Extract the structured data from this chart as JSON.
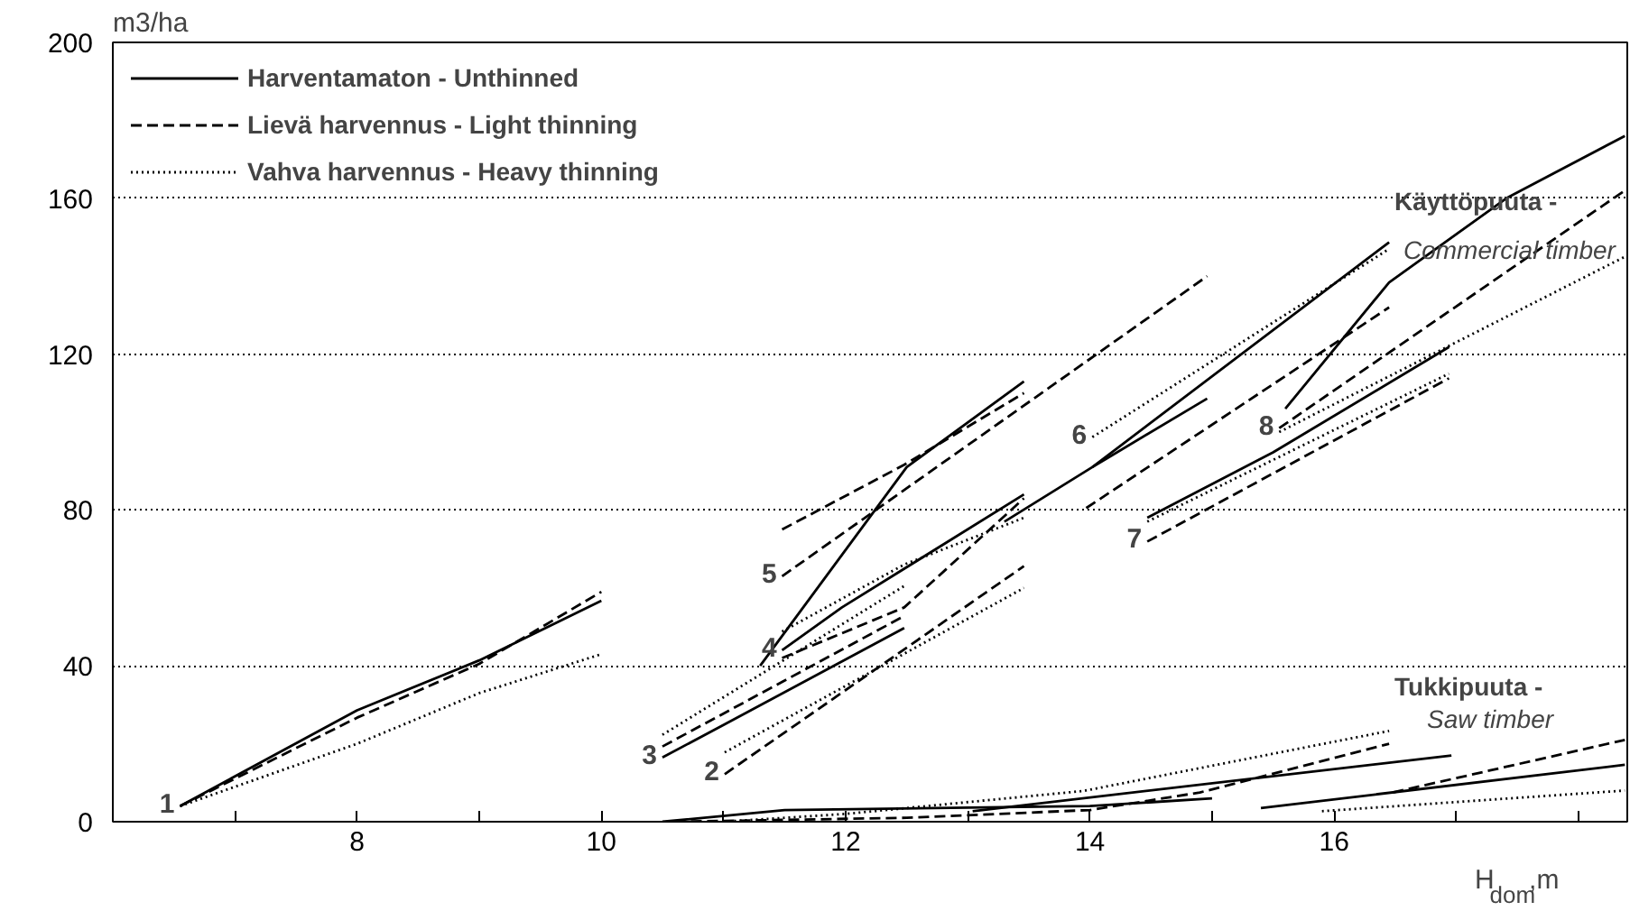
{
  "chart_data": {
    "type": "line",
    "ylabel": "m3/ha",
    "xlabel": "H$_{dom}$,m",
    "xlim": [
      6,
      18.4
    ],
    "ylim": [
      0,
      200
    ],
    "xticks": [
      {
        "value": 7,
        "label": null
      },
      8,
      {
        "value": 9,
        "label": null
      },
      10,
      {
        "value": 11,
        "label": null
      },
      12,
      {
        "value": 13,
        "label": null
      },
      14,
      {
        "value": 15,
        "label": null
      },
      16,
      {
        "value": 17,
        "label": null
      },
      {
        "value": 18,
        "label": null
      }
    ],
    "yticks": [
      0,
      40,
      80,
      120,
      160,
      200
    ],
    "grid": "y",
    "legend": "top left",
    "series": [
      {
        "name": "Harventamaton - Unthinned",
        "color": "#000000",
        "line_style": "solid",
        "x": [
          6.55,
          8,
          9,
          10
        ],
        "values": [
          4,
          28.6,
          41.4,
          56.7
        ]
      },
      {
        "color": "#000000",
        "line_style": "solid",
        "x": [
          10.5,
          11.01,
          12.48
        ],
        "values": [
          16.5,
          25,
          49.7
        ]
      },
      {
        "color": "#000000",
        "line_style": "solid",
        "x": [
          11.3,
          12.5,
          13.46
        ],
        "values": [
          40,
          91,
          113
        ]
      },
      {
        "color": "#000000",
        "line_style": "solid",
        "x": [
          11.48,
          11.97,
          13.46
        ],
        "values": [
          44,
          55,
          84
        ]
      },
      {
        "color": "#000000",
        "line_style": "solid",
        "x": [
          13.3,
          14.02,
          16.45
        ],
        "values": [
          77,
          91,
          148.7
        ]
      },
      {
        "color": "#000000",
        "line_style": "solid",
        "x": [
          14.02,
          14.96
        ],
        "values": [
          91,
          108.6
        ]
      },
      {
        "color": "#000000",
        "line_style": "solid",
        "x": [
          14.47,
          15.5,
          16.94
        ],
        "values": [
          78,
          94.8,
          121.8
        ]
      },
      {
        "color": "#000000",
        "line_style": "solid",
        "x": [
          15.6,
          16.45,
          17.41,
          18.38
        ],
        "values": [
          106,
          138.4,
          160,
          176
        ]
      },
      {
        "color": "#000000",
        "line_style": "solid",
        "x": [
          10.5,
          11.5,
          14,
          15
        ],
        "values": [
          0,
          3,
          4,
          6
        ]
      },
      {
        "color": "#000000",
        "line_style": "solid",
        "x": [
          13.04,
          16.96
        ],
        "values": [
          2.7,
          17
        ]
      },
      {
        "color": "#000000",
        "line_style": "solid",
        "x": [
          15.4,
          18.38
        ],
        "values": [
          3.5,
          14.6
        ]
      },
      {
        "name": "Lievä harvennus - Light thinning",
        "color": "#000000",
        "line_style": "dashed",
        "x": [
          6.55,
          8,
          9,
          10
        ],
        "values": [
          4,
          26.7,
          40.5,
          59
        ]
      },
      {
        "color": "#000000",
        "line_style": "dashed",
        "x": [
          11.01,
          13.46
        ],
        "values": [
          12.2,
          65.6
        ]
      },
      {
        "color": "#000000",
        "line_style": "dashed",
        "x": [
          10.5,
          12.48
        ],
        "values": [
          19.3,
          52.8
        ]
      },
      {
        "color": "#000000",
        "line_style": "dashed",
        "x": [
          11.48,
          12.48,
          13.46
        ],
        "values": [
          42,
          55,
          83
        ]
      },
      {
        "color": "#000000",
        "line_style": "dashed",
        "x": [
          11.48,
          12.48,
          13.46
        ],
        "values": [
          75,
          91.6,
          110
        ]
      },
      {
        "color": "#000000",
        "line_style": "dashed",
        "x": [
          11.48,
          14.96
        ],
        "values": [
          63,
          140
        ]
      },
      {
        "color": "#000000",
        "line_style": "dashed",
        "x": [
          13.97,
          16.45
        ],
        "values": [
          80.5,
          132
        ]
      },
      {
        "color": "#000000",
        "line_style": "dashed",
        "x": [
          14.47,
          16.94
        ],
        "values": [
          71.9,
          113.8
        ]
      },
      {
        "color": "#000000",
        "line_style": "dashed",
        "x": [
          15.55,
          18.38
        ],
        "values": [
          101,
          162
        ]
      },
      {
        "color": "#000000",
        "line_style": "dashed",
        "x": [
          10.6,
          12.5,
          14,
          14.9,
          16.45
        ],
        "values": [
          0,
          1,
          3,
          7.5,
          20
        ]
      },
      {
        "color": "#000000",
        "line_style": "dashed",
        "x": [
          16.48,
          18.38
        ],
        "values": [
          7.5,
          21
        ]
      },
      {
        "name": "Vahva harvennus - Heavy thinning",
        "color": "#000000",
        "line_style": "dotted",
        "x": [
          6.55,
          8,
          9,
          10
        ],
        "values": [
          4,
          20,
          33,
          43
        ]
      },
      {
        "color": "#000000",
        "line_style": "dotted",
        "x": [
          11.01,
          13.46
        ],
        "values": [
          17.8,
          60
        ]
      },
      {
        "color": "#000000",
        "line_style": "dotted",
        "x": [
          10.5,
          12.48
        ],
        "values": [
          22.3,
          60.5
        ]
      },
      {
        "color": "#000000",
        "line_style": "dotted",
        "x": [
          11.48,
          12.48,
          13.46
        ],
        "values": [
          48.8,
          66,
          78
        ]
      },
      {
        "color": "#000000",
        "line_style": "dotted",
        "x": [
          14.02,
          16.45
        ],
        "values": [
          98.7,
          147
        ]
      },
      {
        "color": "#000000",
        "line_style": "dotted",
        "x": [
          14.47,
          16.94
        ],
        "values": [
          77,
          115
        ]
      },
      {
        "color": "#000000",
        "line_style": "dotted",
        "x": [
          15.55,
          18.38
        ],
        "values": [
          100,
          145
        ]
      },
      {
        "color": "#000000",
        "line_style": "dotted",
        "x": [
          11,
          12,
          13.95,
          16.45
        ],
        "values": [
          0,
          2,
          7.9,
          23.3
        ]
      },
      {
        "color": "#000000",
        "line_style": "dotted",
        "x": [
          15.9,
          18.38
        ],
        "values": [
          2.7,
          8
        ]
      }
    ],
    "annotations": [
      {
        "text": "1",
        "x": 6.55,
        "y": 4
      },
      {
        "text": "2",
        "x": 11.01,
        "y": 12.2
      },
      {
        "text": "3",
        "x": 10.5,
        "y": 16.5
      },
      {
        "text": "4",
        "x": 11.48,
        "y": 44
      },
      {
        "text": "5",
        "x": 11.48,
        "y": 63
      },
      {
        "text": "6",
        "x": 14.02,
        "y": 98.7
      },
      {
        "text": "7",
        "x": 14.47,
        "y": 71.9
      },
      {
        "text": "8",
        "x": 15.55,
        "y": 101
      },
      "Käyttöpuuta -",
      "Commercial timber",
      "Tukkipuuta -",
      "Saw timber"
    ]
  }
}
